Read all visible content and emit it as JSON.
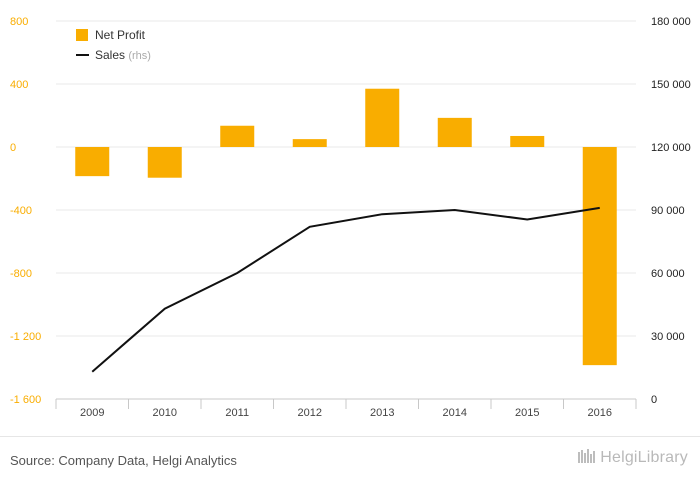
{
  "source_text": "Source: Company Data, Helgi Analytics",
  "brand_text": "HelgiLibrary",
  "colors": {
    "net_profit": "#f9ad00",
    "sales": "#111111",
    "left_axis_labels": "#f9ad00",
    "right_axis_labels": "#222222",
    "grid": "#e9e9e9",
    "tick": "#444444"
  },
  "chart_data": {
    "type": "bar",
    "title": "",
    "xlabel": "",
    "ylabel": "",
    "categories": [
      "2009",
      "2010",
      "2011",
      "2012",
      "2013",
      "2014",
      "2015",
      "2016"
    ],
    "grid": true,
    "legend_position": "top-left",
    "y_left": {
      "min": -1600,
      "max": 800,
      "ticks": [
        800,
        400,
        0,
        -400,
        -800,
        -1200,
        -1600
      ],
      "tick_labels": [
        "800",
        "400",
        "0",
        "-400",
        "-800",
        "-1 200",
        "-1 600"
      ]
    },
    "y_right": {
      "min": 0,
      "max": 180000,
      "ticks": [
        180000,
        150000,
        120000,
        90000,
        60000,
        30000,
        0
      ],
      "tick_labels": [
        "180 000",
        "150 000",
        "120 000",
        "90 000",
        "60 000",
        "30 000",
        "0"
      ]
    },
    "series": [
      {
        "name": "Net Profit",
        "type": "bar",
        "axis": "left",
        "values": [
          -185,
          -195,
          135,
          50,
          370,
          185,
          70,
          -1385
        ]
      },
      {
        "name": "Sales",
        "name_suffix": "(rhs)",
        "type": "line",
        "axis": "right",
        "values": [
          13000,
          43000,
          60000,
          82000,
          88000,
          90000,
          85500,
          91000
        ]
      }
    ]
  }
}
